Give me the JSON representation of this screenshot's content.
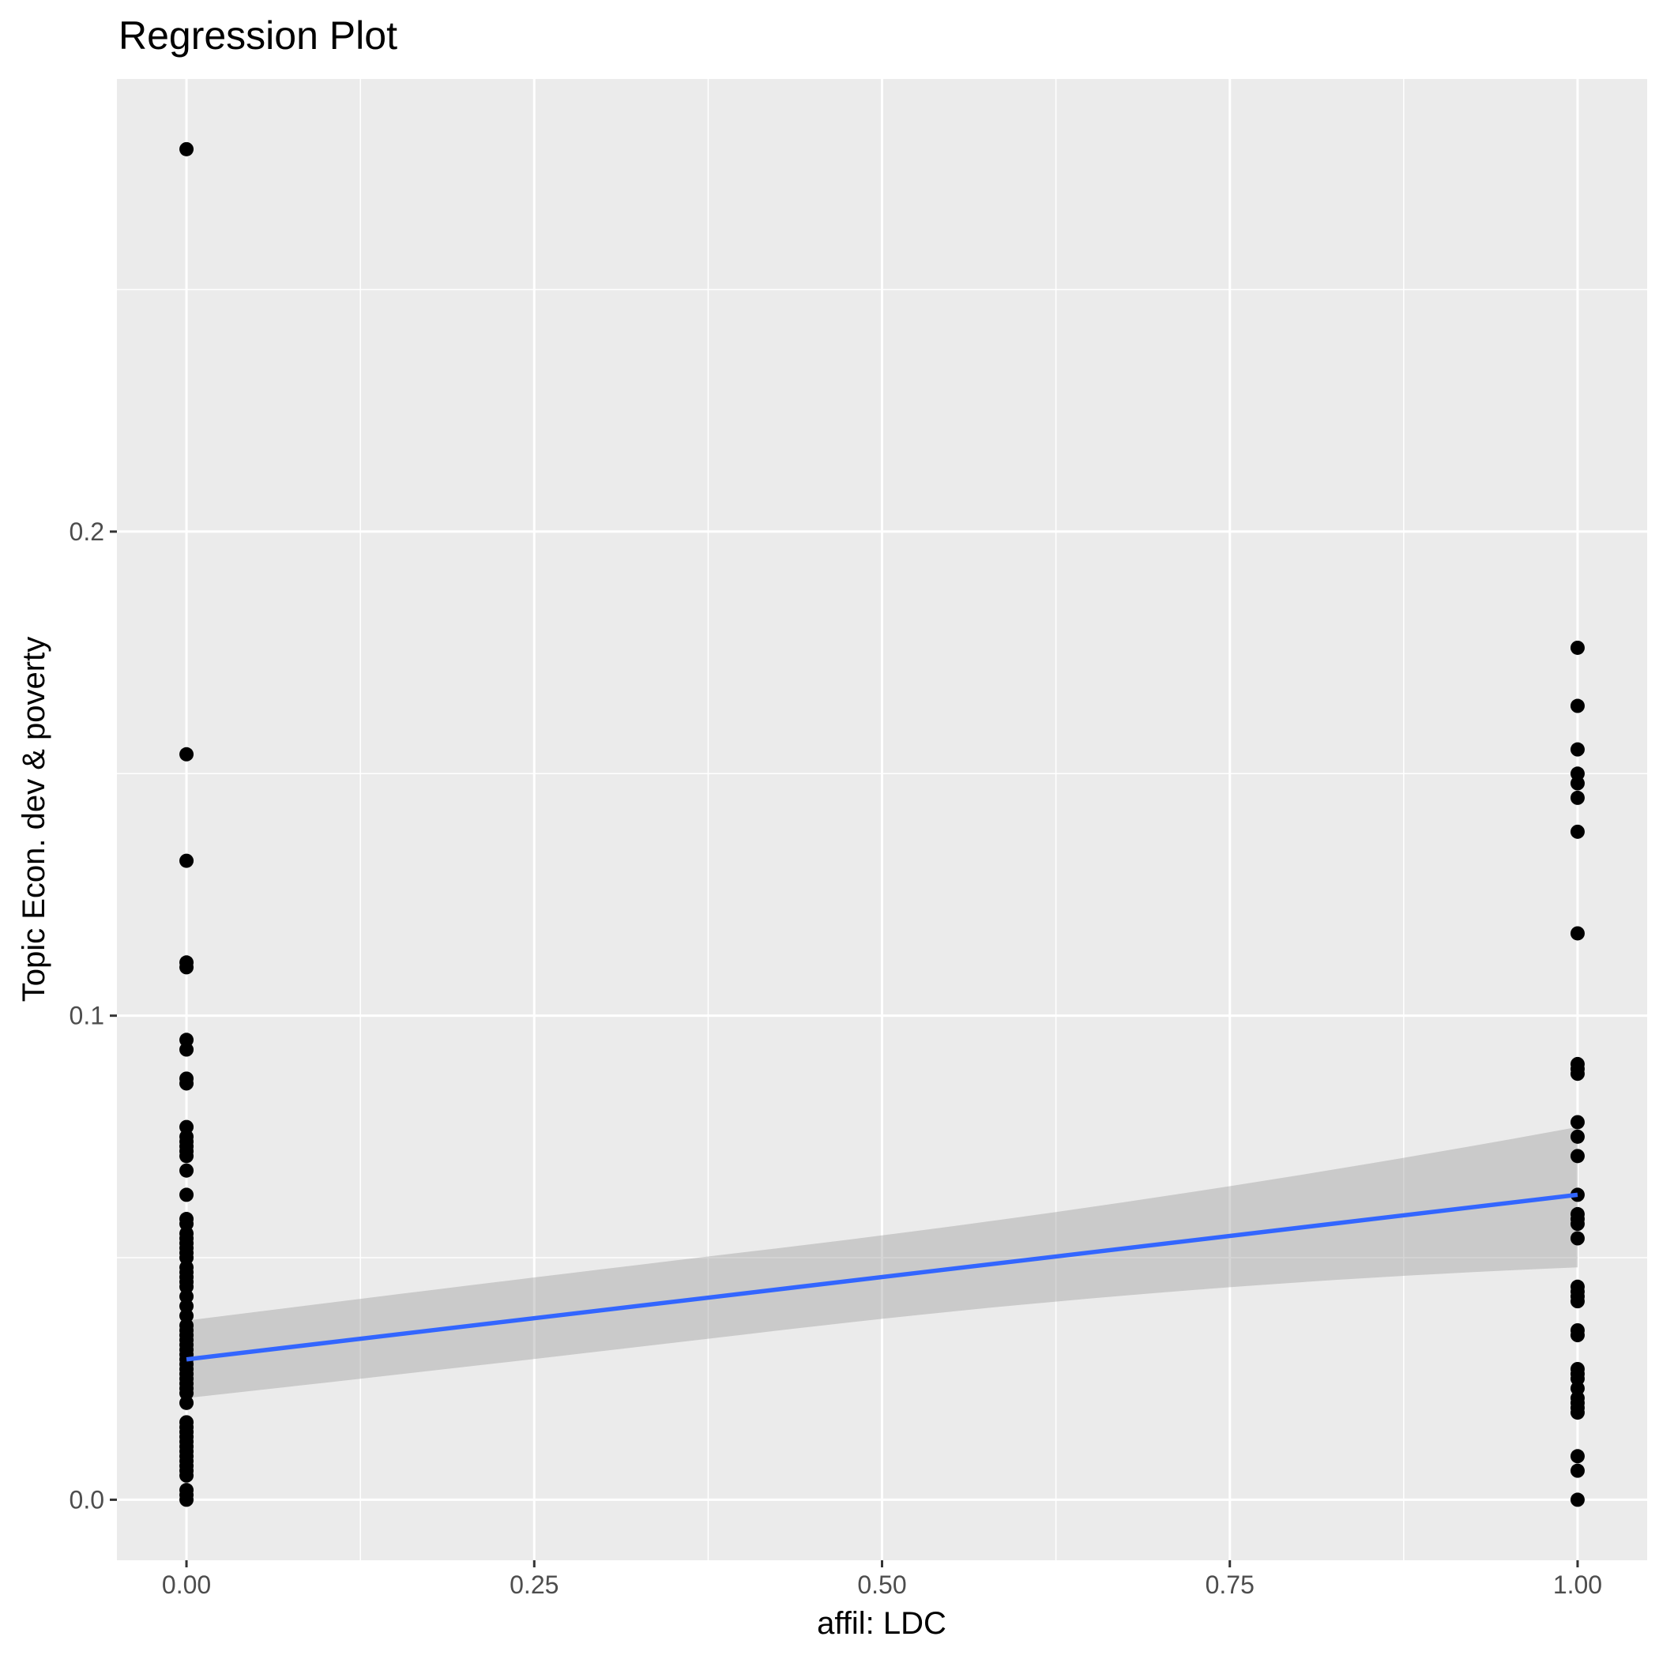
{
  "chart_data": {
    "type": "scatter",
    "title": "Regression Plot",
    "xlabel": "affil: LDC",
    "ylabel": "Topic Econ. dev & poverty",
    "xlim": [
      -0.05,
      1.05
    ],
    "ylim": [
      -0.0125,
      0.2935
    ],
    "x_ticks": [
      0.0,
      0.25,
      0.5,
      0.75,
      1.0
    ],
    "x_tick_labels": [
      "0.00",
      "0.25",
      "0.50",
      "0.75",
      "1.00"
    ],
    "y_ticks": [
      0.0,
      0.1,
      0.2
    ],
    "y_tick_labels": [
      "0.0",
      "0.1",
      "0.2"
    ],
    "grid": true,
    "colors": {
      "panel": "#ebebeb",
      "grid": "#ffffff",
      "points": "#000000",
      "fit_line": "#3366ff",
      "confidence_band": "#999999"
    },
    "points_x0": [
      0.279,
      0.154,
      0.132,
      0.111,
      0.11,
      0.095,
      0.093,
      0.087,
      0.086,
      0.077,
      0.075,
      0.074,
      0.073,
      0.072,
      0.071,
      0.068,
      0.063,
      0.058,
      0.057,
      0.055,
      0.054,
      0.053,
      0.052,
      0.051,
      0.05,
      0.048,
      0.047,
      0.046,
      0.045,
      0.044,
      0.042,
      0.04,
      0.038,
      0.036,
      0.035,
      0.034,
      0.033,
      0.032,
      0.031,
      0.03,
      0.029,
      0.028,
      0.027,
      0.026,
      0.025,
      0.024,
      0.023,
      0.022,
      0.02,
      0.016,
      0.015,
      0.014,
      0.013,
      0.012,
      0.011,
      0.01,
      0.009,
      0.008,
      0.007,
      0.006,
      0.005,
      0.002,
      0.001,
      0.0
    ],
    "points_x1": [
      0.176,
      0.164,
      0.155,
      0.15,
      0.148,
      0.145,
      0.138,
      0.117,
      0.09,
      0.089,
      0.088,
      0.078,
      0.075,
      0.071,
      0.063,
      0.059,
      0.058,
      0.057,
      0.054,
      0.044,
      0.043,
      0.042,
      0.041,
      0.035,
      0.034,
      0.027,
      0.026,
      0.025,
      0.023,
      0.021,
      0.02,
      0.019,
      0.018,
      0.009,
      0.006,
      0.0
    ],
    "regression": {
      "x": [
        0.0,
        1.0
      ],
      "y": [
        0.029,
        0.063
      ],
      "band_lower": [
        0.021,
        0.048
      ],
      "band_upper": [
        0.037,
        0.077
      ]
    }
  }
}
